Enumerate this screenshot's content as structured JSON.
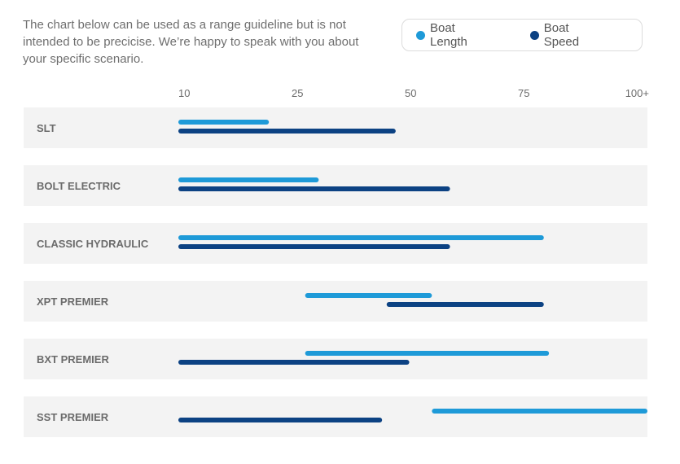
{
  "intro_text": "The chart below can be used as a range guideline but is not intended to be precicise. We’re happy to speak with you about your specific scenario.",
  "colors": {
    "length": "#1e9ad8",
    "speed": "#0c4283",
    "row_bg": "#f3f3f3"
  },
  "chart_data": {
    "type": "bar",
    "orientation": "horizontal-range",
    "ticks": [
      "10",
      "25",
      "50",
      "75",
      "100+"
    ],
    "legend": {
      "placement": "top-right",
      "entries": [
        "Boat Length",
        "Boat Speed"
      ]
    },
    "categories": [
      "SLT",
      "BOLT ELECTRIC",
      "CLASSIC HYDRAULIC",
      "XPT PREMIER",
      "BXT PREMIER",
      "SST PREMIER"
    ],
    "series": [
      {
        "name": "Boat Length",
        "ranges": [
          [
            10,
            22
          ],
          [
            10,
            31
          ],
          [
            10,
            80
          ],
          [
            28,
            56
          ],
          [
            28,
            81
          ],
          [
            56,
            100
          ]
        ]
      },
      {
        "name": "Boat Speed",
        "ranges": [
          [
            10,
            48
          ],
          [
            10,
            60
          ],
          [
            10,
            60
          ],
          [
            46,
            80
          ],
          [
            10,
            51
          ],
          [
            10,
            45
          ]
        ]
      }
    ]
  }
}
